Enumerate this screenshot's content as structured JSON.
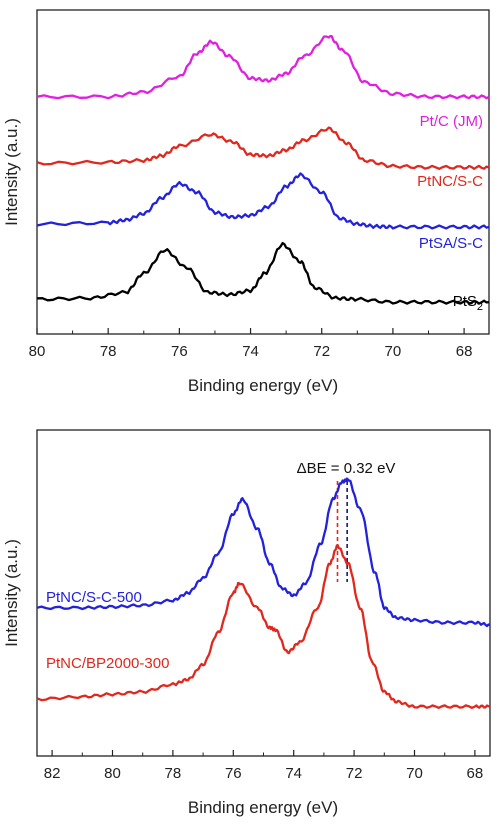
{
  "chart_data": [
    {
      "type": "line",
      "xlabel": "Binding energy (eV)",
      "ylabel": "Intensity (a.u.)",
      "xlim": [
        80,
        67.3
      ],
      "x_ticks": [
        "80",
        "78",
        "76",
        "74",
        "72",
        "70",
        "68"
      ],
      "y_ticks_labeled": false,
      "series": [
        {
          "name": "Pt/C (JM)",
          "color": "#e01fe0",
          "x": [
            80,
            78,
            77,
            76,
            75.5,
            75.1,
            74.6,
            74,
            73.5,
            73,
            72.5,
            71.8,
            71.4,
            70.8,
            70,
            69,
            68,
            67.3
          ],
          "y": [
            4.1,
            4.1,
            4.18,
            4.45,
            4.85,
            5.05,
            4.8,
            4.42,
            4.38,
            4.5,
            4.8,
            5.15,
            4.9,
            4.35,
            4.15,
            4.1,
            4.1,
            4.1
          ]
        },
        {
          "name": "PtNC/S-C",
          "color": "#e0281e",
          "x": [
            80,
            78,
            77,
            76.5,
            76,
            75.1,
            74.5,
            74,
            73.5,
            73,
            72.5,
            71.8,
            71.3,
            70.8,
            70,
            69,
            68,
            67.3
          ],
          "y": [
            2.95,
            2.97,
            3.0,
            3.08,
            3.25,
            3.45,
            3.32,
            3.1,
            3.08,
            3.18,
            3.35,
            3.55,
            3.3,
            3.0,
            2.9,
            2.88,
            2.88,
            2.88
          ]
        },
        {
          "name": "PtSA/S-C",
          "color": "#2222dd",
          "x": [
            80,
            78,
            77.5,
            77,
            76.5,
            76,
            75.5,
            75,
            74.5,
            74,
            73.5,
            73,
            72.6,
            72,
            71.5,
            71,
            70.5,
            70,
            69,
            68,
            67.3
          ],
          "y": [
            1.9,
            1.92,
            1.97,
            2.08,
            2.35,
            2.6,
            2.45,
            2.1,
            2.02,
            2.05,
            2.2,
            2.55,
            2.75,
            2.45,
            2.0,
            1.9,
            1.86,
            1.85,
            1.85,
            1.85,
            1.85
          ]
        },
        {
          "name": "PtS2",
          "color": "#000000",
          "x": [
            80,
            78.5,
            77.5,
            77,
            76.4,
            75.8,
            75.2,
            74.6,
            74,
            73.6,
            73.1,
            72.6,
            72.2,
            71.6,
            71,
            70,
            69,
            68,
            67.3
          ],
          "y": [
            0.6,
            0.62,
            0.72,
            1.05,
            1.45,
            1.15,
            0.72,
            0.68,
            0.75,
            1.05,
            1.55,
            1.25,
            0.8,
            0.62,
            0.6,
            0.55,
            0.55,
            0.55,
            0.55
          ]
        }
      ]
    },
    {
      "type": "line",
      "xlabel": "Binding energy (eV)",
      "ylabel": "Intensity (a.u.)",
      "xlim": [
        82.5,
        67.5
      ],
      "x_ticks": [
        "82",
        "80",
        "78",
        "76",
        "74",
        "72",
        "70",
        "68"
      ],
      "y_ticks_labeled": false,
      "annotation": {
        "text": "ΔBE = 0.32 eV",
        "line_red_x": 72.55,
        "line_blue_x": 72.23
      },
      "series": [
        {
          "name": "PtNC/S-C-500",
          "color": "#2222dd",
          "x": [
            82.5,
            81,
            80,
            79,
            78,
            77.5,
            77,
            76.5,
            76,
            75.7,
            75.2,
            74.8,
            74.4,
            74.0,
            73.6,
            73.1,
            72.7,
            72.4,
            72.2,
            71.8,
            71.3,
            71.0,
            70.6,
            70,
            69,
            68,
            67.5
          ],
          "y": [
            3.0,
            3.0,
            3.02,
            3.05,
            3.15,
            3.3,
            3.6,
            4.1,
            4.9,
            5.2,
            4.6,
            3.9,
            3.4,
            3.25,
            3.5,
            4.3,
            5.2,
            5.55,
            5.6,
            5.0,
            3.7,
            3.0,
            2.8,
            2.75,
            2.7,
            2.7,
            2.65
          ]
        },
        {
          "name": "PtNC/BP2000-300",
          "color": "#e0281e",
          "x": [
            82.5,
            81,
            80,
            79,
            78,
            77.5,
            77,
            76.5,
            76,
            75.8,
            75.2,
            74.8,
            74.6,
            74.2,
            73.8,
            73.2,
            72.8,
            72.55,
            72.2,
            71.8,
            71.4,
            71.0,
            70.6,
            70,
            69,
            68,
            67.5
          ],
          "y": [
            1.15,
            1.2,
            1.25,
            1.3,
            1.45,
            1.55,
            1.85,
            2.5,
            3.3,
            3.5,
            3.0,
            2.6,
            2.55,
            2.1,
            2.3,
            3.0,
            3.9,
            4.25,
            3.9,
            3.0,
            1.9,
            1.3,
            1.1,
            1.0,
            1.0,
            1.0,
            1.0
          ]
        }
      ]
    }
  ]
}
